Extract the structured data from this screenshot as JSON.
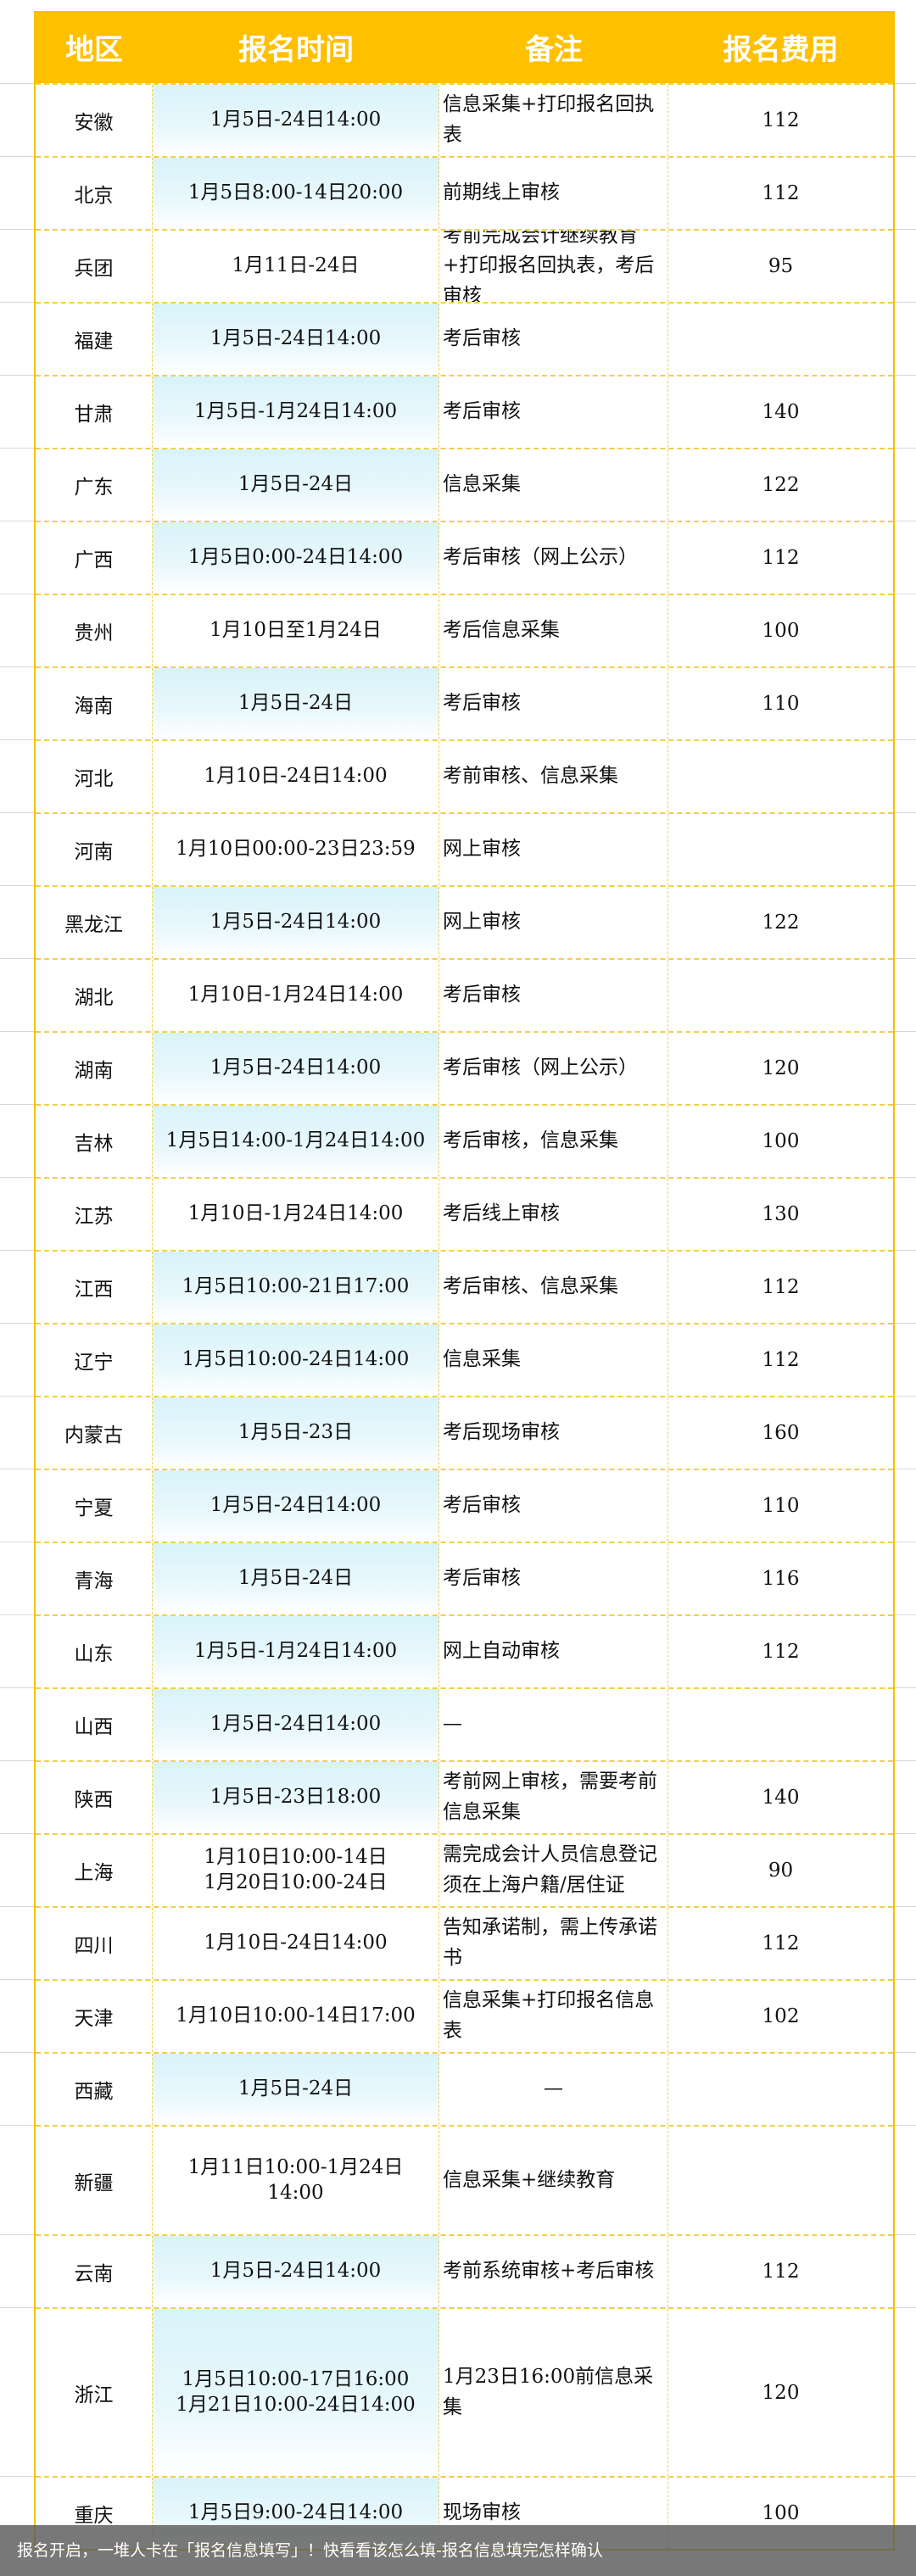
{
  "header": [
    "地区",
    "报名时间",
    "备注",
    "报名费用"
  ],
  "colors": {
    "header_bg": "#ffc000",
    "border": "#f0cf4a",
    "highlight": "#d8f3fa"
  },
  "rows": [
    {
      "region": "安徽",
      "time": "1月5日-24日14:00",
      "note": "信息采集+打印报名回执表",
      "fee": "112",
      "highlight": true
    },
    {
      "region": "北京",
      "time": "1月5日8:00-14日20:00",
      "note": "前期线上审核",
      "fee": "112",
      "highlight": true
    },
    {
      "region": "兵团",
      "time": "1月11日-24日",
      "note": "考前完成会计继续教育+打印报名回执表，考后审核",
      "fee": "95",
      "highlight": false
    },
    {
      "region": "福建",
      "time": "1月5日-24日14:00",
      "note": "考后审核",
      "fee": "",
      "highlight": true
    },
    {
      "region": "甘肃",
      "time": "1月5日-1月24日14:00",
      "note": "考后审核",
      "fee": "140",
      "highlight": true
    },
    {
      "region": "广东",
      "time": "1月5日-24日",
      "note": "信息采集",
      "fee": "122",
      "highlight": true
    },
    {
      "region": "广西",
      "time": "1月5日0:00-24日14:00",
      "note": "考后审核（网上公示）",
      "fee": "112",
      "highlight": true
    },
    {
      "region": "贵州",
      "time": "1月10日至1月24日",
      "note": "考后信息采集",
      "fee": "100",
      "highlight": false
    },
    {
      "region": "海南",
      "time": "1月5日-24日",
      "note": "考后审核",
      "fee": "110",
      "highlight": true
    },
    {
      "region": "河北",
      "time": "1月10日-24日14:00",
      "note": "考前审核、信息采集",
      "fee": "",
      "highlight": false
    },
    {
      "region": "河南",
      "time": "1月10日00:00-23日23:59",
      "note": "网上审核",
      "fee": "",
      "highlight": false
    },
    {
      "region": "黑龙江",
      "time": "1月5日-24日14:00",
      "note": "网上审核",
      "fee": "122",
      "highlight": true
    },
    {
      "region": "湖北",
      "time": "1月10日-1月24日14:00",
      "note": "考后审核",
      "fee": "",
      "highlight": false
    },
    {
      "region": "湖南",
      "time": "1月5日-24日14:00",
      "note": "考后审核（网上公示）",
      "fee": "120",
      "highlight": true
    },
    {
      "region": "吉林",
      "time": "1月5日14:00-1月24日14:00",
      "note": "考后审核，信息采集",
      "fee": "100",
      "highlight": true
    },
    {
      "region": "江苏",
      "time": "1月10日-1月24日14:00",
      "note": "考后线上审核",
      "fee": "130",
      "highlight": false
    },
    {
      "region": "江西",
      "time": "1月5日10:00-21日17:00",
      "note": "考后审核、信息采集",
      "fee": "112",
      "highlight": true
    },
    {
      "region": "辽宁",
      "time": "1月5日10:00-24日14:00",
      "note": "信息采集",
      "fee": "112",
      "highlight": true
    },
    {
      "region": "内蒙古",
      "time": "1月5日-23日",
      "note": "考后现场审核",
      "fee": "160",
      "highlight": true
    },
    {
      "region": "宁夏",
      "time": "1月5日-24日14:00",
      "note": "考后审核",
      "fee": "110",
      "highlight": true
    },
    {
      "region": "青海",
      "time": "1月5日-24日",
      "note": "考后审核",
      "fee": "116",
      "highlight": true
    },
    {
      "region": "山东",
      "time": "1月5日-1月24日14:00",
      "note": "网上自动审核",
      "fee": "112",
      "highlight": true
    },
    {
      "region": "山西",
      "time": "1月5日-24日14:00",
      "note": "—",
      "fee": "",
      "highlight": true
    },
    {
      "region": "陕西",
      "time": "1月5日-23日18:00",
      "note": "考前网上审核，需要考前信息采集",
      "fee": "140",
      "highlight": true
    },
    {
      "region": "上海",
      "time": "1月10日10:00-14日\n1月20日10:00-24日",
      "note": "需完成会计人员信息登记\n须在上海户籍/居住证",
      "fee": "90",
      "highlight": false
    },
    {
      "region": "四川",
      "time": "1月10日-24日14:00",
      "note": "告知承诺制，需上传承诺书",
      "fee": "112",
      "highlight": false
    },
    {
      "region": "天津",
      "time": "1月10日10:00-14日17:00",
      "note": "信息采集+打印报名信息表",
      "fee": "102",
      "highlight": false
    },
    {
      "region": "西藏",
      "time": "1月5日-24日",
      "note": "—",
      "fee": "",
      "highlight": true,
      "note_center": true
    },
    {
      "region": "新疆",
      "time": "1月11日10:00-1月24日\n14:00",
      "note": "信息采集+继续教育",
      "fee": "",
      "highlight": false,
      "tall": 129
    },
    {
      "region": "云南",
      "time": "1月5日-24日14:00",
      "note": "考前系统审核+考后审核",
      "fee": "112",
      "highlight": true
    },
    {
      "region": "浙江",
      "time": "1月5日10:00-17日16:00\n1月21日10:00-24日14:00",
      "note": "1月23日16:00前信息采集",
      "fee": "120",
      "highlight": true,
      "tall": 199
    },
    {
      "region": "重庆",
      "time": "1月5日9:00-24日14:00",
      "note": "现场审核",
      "fee": "100",
      "highlight": true
    }
  ],
  "caption": "报名开启，一堆人卡在「报名信息填写」！快看看该怎么填-报名信息填完怎样确认"
}
